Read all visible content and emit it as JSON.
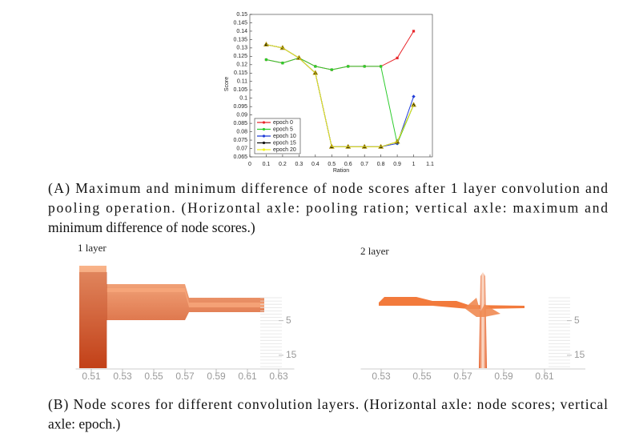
{
  "chart_data": [
    {
      "type": "line",
      "x_label": "Ration",
      "y_label": "Score",
      "x": [
        0.1,
        0.2,
        0.3,
        0.4,
        0.5,
        0.6,
        0.7,
        0.8,
        0.9,
        1
      ],
      "series": [
        {
          "name": "epoch 0",
          "color": "#e8262b",
          "marker": "square",
          "values": [
            0.123,
            0.121,
            0.124,
            0.119,
            0.117,
            0.119,
            0.119,
            0.119,
            0.124,
            0.14
          ]
        },
        {
          "name": "epoch 5",
          "color": "#2dcc2d",
          "marker": "circle",
          "values": [
            0.123,
            0.121,
            0.124,
            0.119,
            0.117,
            0.119,
            0.119,
            0.119,
            0.073,
            0.096
          ]
        },
        {
          "name": "epoch 10",
          "color": "#1e3ad8",
          "marker": "diamond",
          "values": [
            0.132,
            0.13,
            0.124,
            0.115,
            0.071,
            0.071,
            0.071,
            0.071,
            0.073,
            0.101
          ]
        },
        {
          "name": "epoch 15",
          "color": "#111111",
          "marker": "triangle",
          "values": [
            0.132,
            0.13,
            0.124,
            0.115,
            0.071,
            0.071,
            0.071,
            0.071,
            0.074,
            0.096
          ]
        },
        {
          "name": "epoch 20",
          "color": "#f2f21c",
          "marker": "triangle",
          "values": [
            0.132,
            0.13,
            0.124,
            0.115,
            0.071,
            0.071,
            0.071,
            0.071,
            0.074,
            0.096
          ]
        }
      ],
      "xlim": [
        0,
        1.1
      ],
      "xticks": [
        0,
        0.1,
        0.2,
        0.3,
        0.4,
        0.5,
        0.6,
        0.7,
        0.8,
        0.9,
        1,
        1.1
      ],
      "ylim": [
        0.065,
        0.15
      ],
      "yticks": [
        0.065,
        0.07,
        0.075,
        0.08,
        0.085,
        0.09,
        0.095,
        0.1,
        0.105,
        0.11,
        0.115,
        0.12,
        0.125,
        0.13,
        0.135,
        0.14,
        0.145,
        0.15
      ],
      "legend": "lower-left"
    },
    {
      "type": "ridgeline",
      "title": "1 layer",
      "xlim": [
        0.5,
        0.64
      ],
      "xticks": [
        0.51,
        0.53,
        0.55,
        0.57,
        0.59,
        0.61,
        0.63
      ],
      "ylim": [
        0,
        20
      ],
      "yticks": [
        5,
        15
      ]
    },
    {
      "type": "ridgeline",
      "title": "2 layer",
      "xlim": [
        0.52,
        0.63
      ],
      "xticks": [
        0.53,
        0.55,
        0.57,
        0.59,
        0.61
      ],
      "ylim": [
        0,
        20
      ],
      "yticks": [
        5,
        15
      ]
    }
  ],
  "captions": {
    "a": [
      "(A) Maximum and minimum difference of node scores after 1 layer convolution and",
      "pooling operation. (Horizontal axle: pooling ration; vertical axle: maximum and",
      "minimum difference of node scores.)"
    ],
    "b": [
      "(B) Node scores for different convolution layers. (Horizontal axle: node scores; vertical",
      "axle: epoch.)"
    ]
  }
}
